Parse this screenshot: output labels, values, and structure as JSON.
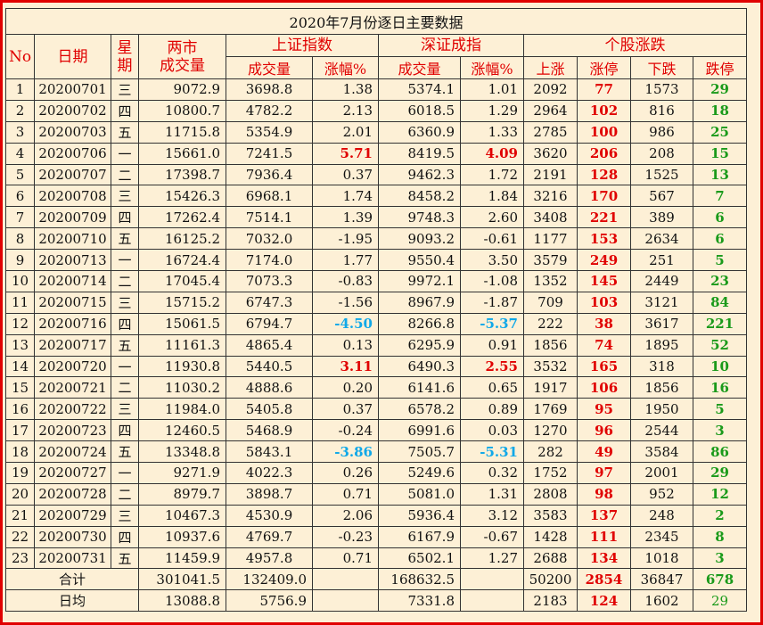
{
  "title": "2020年7月份逐日主要数据",
  "headers": {
    "no": "No",
    "date": "日期",
    "weekday_1": "星",
    "weekday_2": "期",
    "two_market_1": "两市",
    "two_market_2": "成交量",
    "sh_index": "上证指数",
    "sz_index": "深证成指",
    "stocks": "个股涨跌",
    "sh_vol": "成交量",
    "sh_pct": "涨幅%",
    "sz_vol": "成交量",
    "sz_pct": "涨幅%",
    "up": "上涨",
    "limit_up": "涨停",
    "down": "下跌",
    "limit_down": "跌停"
  },
  "rows": [
    [
      "1",
      "20200701",
      "三",
      "9072.9",
      "3698.8",
      "1.38",
      "5374.1",
      "1.01",
      "2092",
      "77",
      "1573",
      "29"
    ],
    [
      "2",
      "20200702",
      "四",
      "10800.7",
      "4782.2",
      "2.13",
      "6018.5",
      "1.29",
      "2964",
      "102",
      "816",
      "18"
    ],
    [
      "3",
      "20200703",
      "五",
      "11715.8",
      "5354.9",
      "2.01",
      "6360.9",
      "1.33",
      "2785",
      "100",
      "986",
      "25"
    ],
    [
      "4",
      "20200706",
      "一",
      "15661.0",
      "7241.5",
      "5.71",
      "8419.5",
      "4.09",
      "3620",
      "206",
      "208",
      "15"
    ],
    [
      "5",
      "20200707",
      "二",
      "17398.7",
      "7936.4",
      "0.37",
      "9462.3",
      "1.72",
      "2191",
      "128",
      "1525",
      "13"
    ],
    [
      "6",
      "20200708",
      "三",
      "15426.3",
      "6968.1",
      "1.74",
      "8458.2",
      "1.84",
      "3216",
      "170",
      "567",
      "7"
    ],
    [
      "7",
      "20200709",
      "四",
      "17262.4",
      "7514.1",
      "1.39",
      "9748.3",
      "2.60",
      "3408",
      "221",
      "389",
      "6"
    ],
    [
      "8",
      "20200710",
      "五",
      "16125.2",
      "7032.0",
      "-1.95",
      "9093.2",
      "-0.61",
      "1177",
      "153",
      "2634",
      "6"
    ],
    [
      "9",
      "20200713",
      "一",
      "16724.4",
      "7174.0",
      "1.77",
      "9550.4",
      "3.50",
      "3579",
      "249",
      "251",
      "5"
    ],
    [
      "10",
      "20200714",
      "二",
      "17045.4",
      "7073.3",
      "-0.83",
      "9972.1",
      "-1.08",
      "1352",
      "145",
      "2449",
      "23"
    ],
    [
      "11",
      "20200715",
      "三",
      "15715.2",
      "6747.3",
      "-1.56",
      "8967.9",
      "-1.87",
      "709",
      "103",
      "3121",
      "84"
    ],
    [
      "12",
      "20200716",
      "四",
      "15061.5",
      "6794.7",
      "-4.50",
      "8266.8",
      "-5.37",
      "222",
      "38",
      "3617",
      "221"
    ],
    [
      "13",
      "20200717",
      "五",
      "11161.3",
      "4865.4",
      "0.13",
      "6295.9",
      "0.91",
      "1856",
      "74",
      "1895",
      "52"
    ],
    [
      "14",
      "20200720",
      "一",
      "11930.8",
      "5440.5",
      "3.11",
      "6490.3",
      "2.55",
      "3532",
      "165",
      "318",
      "10"
    ],
    [
      "15",
      "20200721",
      "二",
      "11030.2",
      "4888.6",
      "0.20",
      "6141.6",
      "0.65",
      "1917",
      "106",
      "1856",
      "16"
    ],
    [
      "16",
      "20200722",
      "三",
      "11984.0",
      "5405.8",
      "0.37",
      "6578.2",
      "0.89",
      "1769",
      "95",
      "1950",
      "5"
    ],
    [
      "17",
      "20200723",
      "四",
      "12460.5",
      "5468.9",
      "-0.24",
      "6991.6",
      "0.03",
      "1270",
      "96",
      "2544",
      "3"
    ],
    [
      "18",
      "20200724",
      "五",
      "13348.8",
      "5843.1",
      "-3.86",
      "7505.7",
      "-5.31",
      "282",
      "49",
      "3584",
      "86"
    ],
    [
      "19",
      "20200727",
      "一",
      "9271.9",
      "4022.3",
      "0.26",
      "5249.6",
      "0.32",
      "1752",
      "97",
      "2001",
      "29"
    ],
    [
      "20",
      "20200728",
      "二",
      "8979.7",
      "3898.7",
      "0.71",
      "5081.0",
      "1.31",
      "2808",
      "98",
      "952",
      "12"
    ],
    [
      "21",
      "20200729",
      "三",
      "10467.3",
      "4530.9",
      "2.06",
      "5936.4",
      "3.12",
      "3583",
      "137",
      "248",
      "2"
    ],
    [
      "22",
      "20200730",
      "四",
      "10937.6",
      "4769.7",
      "-0.23",
      "6167.9",
      "-0.67",
      "1428",
      "111",
      "2345",
      "8"
    ],
    [
      "23",
      "20200731",
      "五",
      "11459.9",
      "4957.8",
      "0.71",
      "6502.1",
      "1.27",
      "2688",
      "134",
      "1018",
      "3"
    ]
  ],
  "highlights": {
    "sh_pct_red": [
      "4",
      "14"
    ],
    "sz_pct_red": [
      "4",
      "14"
    ],
    "sh_pct_blue": [
      "12",
      "18"
    ],
    "sz_pct_blue": [
      "12",
      "18"
    ]
  },
  "total": {
    "label": "合计",
    "two_market": "301041.5",
    "sh_vol": "132409.0",
    "sz_vol": "168632.5",
    "up": "50200",
    "limit_up": "2854",
    "down": "36847",
    "limit_down": "678"
  },
  "average": {
    "label": "日均",
    "two_market": "13088.8",
    "sh_vol": "5756.9",
    "sz_vol": "7331.8",
    "up": "2183",
    "limit_up": "124",
    "down": "1602",
    "limit_down": "29"
  },
  "colors": {
    "border": "#e00000",
    "background": "#fdf0d6",
    "header_text": "#e00000",
    "limit_up_text": "#e00000",
    "limit_down_text": "#1a9a1a",
    "drop_highlight": "#10a8e8"
  }
}
